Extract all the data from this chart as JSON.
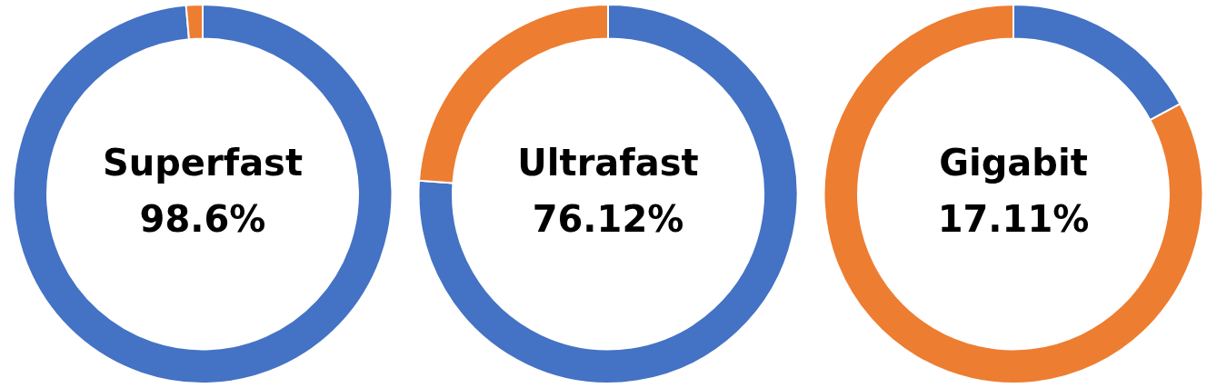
{
  "chart_data": [
    {
      "type": "donut",
      "title": "Superfast",
      "categories": [
        null,
        null
      ],
      "values": [
        98.6,
        1.4
      ],
      "colors": [
        "#4472c4",
        "#ed7d31"
      ],
      "annotations": [
        "98.6%"
      ]
    },
    {
      "type": "donut",
      "title": "Ultrafast",
      "categories": [
        null,
        null
      ],
      "values": [
        76.12,
        23.88
      ],
      "colors": [
        "#4472c4",
        "#ed7d31"
      ],
      "annotations": [
        "76.12%"
      ]
    },
    {
      "type": "donut",
      "title": "Gigabit",
      "categories": [
        null,
        null
      ],
      "values": [
        17.11,
        82.89
      ],
      "colors": [
        "#4472c4",
        "#ed7d31"
      ],
      "annotations": [
        "17.11%"
      ]
    }
  ]
}
